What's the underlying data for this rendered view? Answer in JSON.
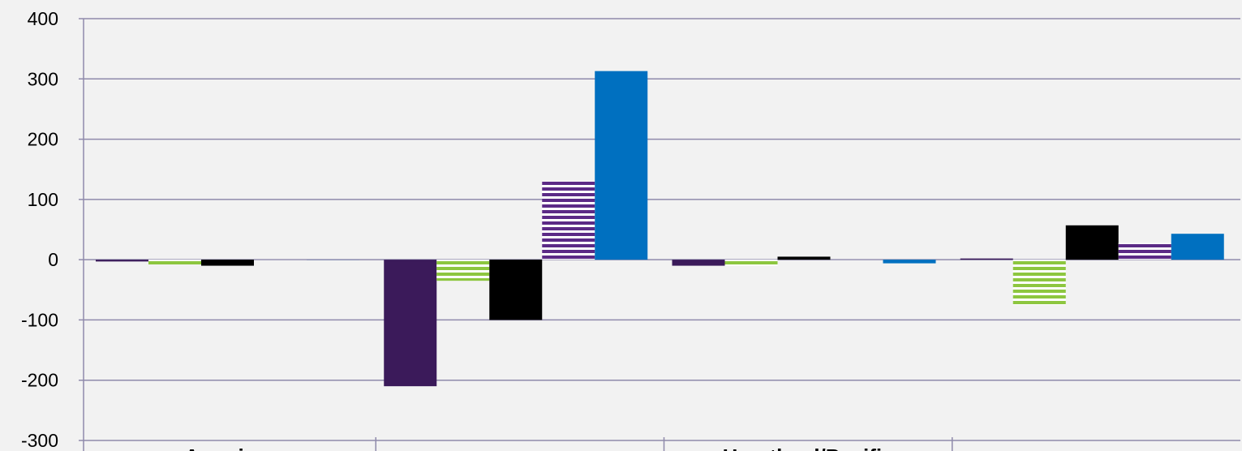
{
  "chart_data": {
    "type": "bar",
    "title": "",
    "xlabel": "",
    "ylabel": "",
    "ylim": [
      -300,
      400
    ],
    "yticks": [
      400,
      300,
      200,
      100,
      0,
      -100,
      -200,
      -300
    ],
    "grid": true,
    "legend": "none",
    "categories": [
      "Americas",
      "",
      "Heartland/Pacific",
      ""
    ],
    "series": [
      {
        "values": [
          -3,
          -210,
          -10,
          2
        ],
        "color": "#3b1a5a",
        "pattern": "solid"
      },
      {
        "values": [
          -8,
          -35,
          -10,
          -75
        ],
        "color": "#8dc63f",
        "pattern": "stripes"
      },
      {
        "values": [
          -10,
          -100,
          5,
          57
        ],
        "color": "#000000",
        "pattern": "solid"
      },
      {
        "values": [
          0,
          130,
          0,
          28
        ],
        "color": "#5b2a86",
        "pattern": "stripes"
      },
      {
        "values": [
          0,
          313,
          -6,
          43
        ],
        "color": "#0070c0",
        "pattern": "solid"
      }
    ],
    "colors": {
      "grid": "#8f8aab",
      "background": "#f2f2f2"
    }
  }
}
